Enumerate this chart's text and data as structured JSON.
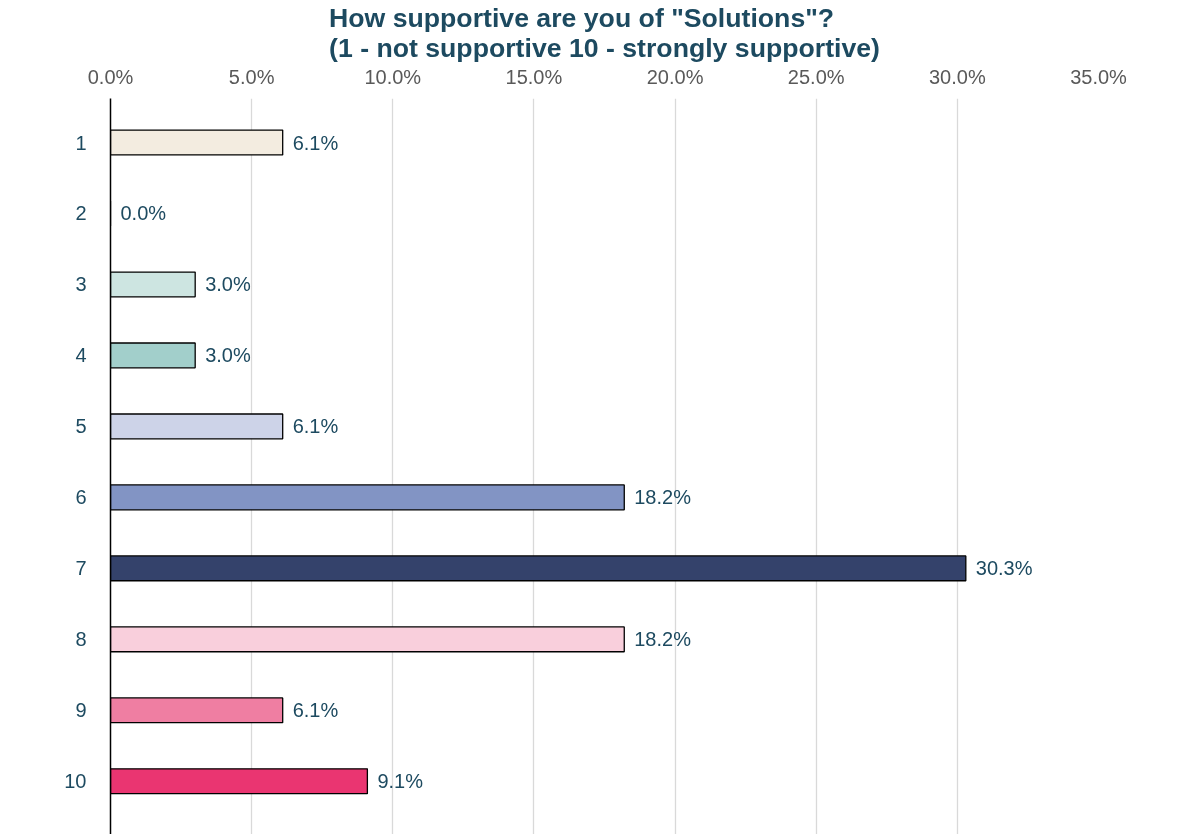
{
  "chart_data": {
    "type": "bar",
    "orientation": "horizontal",
    "title": "How supportive are you of \"Solutions\"?\n(1 - not supportive 10 - strongly supportive)",
    "categories": [
      "1",
      "2",
      "3",
      "4",
      "5",
      "6",
      "7",
      "8",
      "9",
      "10"
    ],
    "values": [
      6.1,
      0.0,
      3.0,
      3.0,
      6.1,
      18.2,
      30.3,
      18.2,
      6.1,
      9.1
    ],
    "colors": [
      "#f3ece0",
      "#ece4d4",
      "#cde5e1",
      "#a2cfcb",
      "#cdd3e8",
      "#8294c4",
      "#34426b",
      "#f9cfdc",
      "#ef7ea2",
      "#ea3571"
    ],
    "value_labels": [
      "6.1%",
      "0.0%",
      "3.0%",
      "3.0%",
      "6.1%",
      "18.2%",
      "30.3%",
      "18.2%",
      "6.1%",
      "9.1%"
    ],
    "xlim": [
      0,
      35
    ],
    "xticks": [
      {
        "value": 0,
        "label": "0.0%"
      },
      {
        "value": 5,
        "label": "5.0%"
      },
      {
        "value": 10,
        "label": "10.0%"
      },
      {
        "value": 15,
        "label": "15.0%"
      },
      {
        "value": 20,
        "label": "20.0%"
      },
      {
        "value": 25,
        "label": "25.0%"
      },
      {
        "value": 30,
        "label": "30.0%"
      },
      {
        "value": 35,
        "label": "35.0%"
      }
    ],
    "grid": "x"
  }
}
